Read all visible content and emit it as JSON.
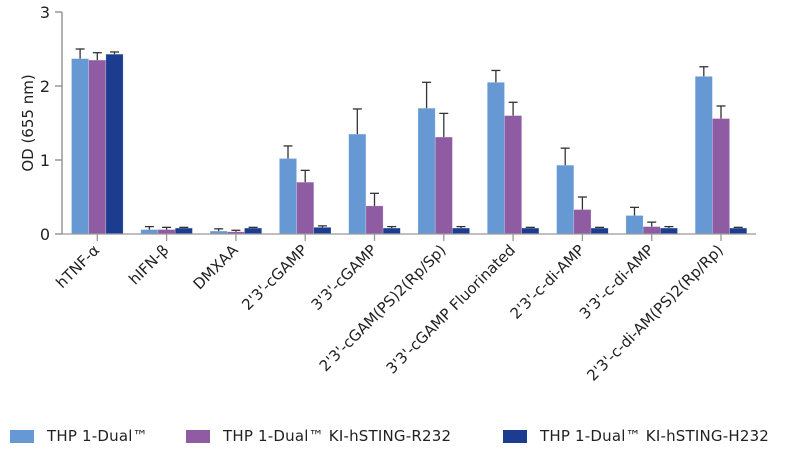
{
  "chart_data": {
    "type": "bar",
    "title": "",
    "xlabel": "",
    "ylabel": "OD (655 nm)",
    "ylim": [
      0,
      3
    ],
    "yticks": [
      0,
      1,
      2,
      3
    ],
    "grid": false,
    "legend_position": "bottom",
    "categories": [
      "hTNF-α",
      "hIFN-β",
      "DMXAA",
      "2'3'-cGAMP",
      "3'3'-cGAMP",
      "2'3'-cGAM(PS)2(Rp/Sp)",
      "3'3'-cGAMP Fluorinated",
      "2'3'-c-di-AMP",
      "3'3'-c-di-AMP",
      "2'3'-c-di-AM(PS)2(Rp/Rp)"
    ],
    "series": [
      {
        "name": "THP1-Dual™",
        "color": "#6699d4",
        "values": [
          2.37,
          0.06,
          0.04,
          1.02,
          1.35,
          1.7,
          2.05,
          0.93,
          0.25,
          2.13
        ],
        "error": [
          0.13,
          0.04,
          0.03,
          0.17,
          0.34,
          0.35,
          0.16,
          0.23,
          0.11,
          0.13
        ]
      },
      {
        "name": "THP1-Dual™ KI-hSTING-R232",
        "color": "#8f5ca3",
        "values": [
          2.35,
          0.06,
          0.03,
          0.7,
          0.38,
          1.31,
          1.6,
          0.33,
          0.1,
          1.56
        ],
        "error": [
          0.1,
          0.03,
          0.02,
          0.16,
          0.17,
          0.32,
          0.18,
          0.17,
          0.06,
          0.17
        ]
      },
      {
        "name": "THP1-Dual™ KI-hSTING-H232",
        "color": "#1b3c8f",
        "values": [
          2.43,
          0.08,
          0.08,
          0.09,
          0.08,
          0.08,
          0.08,
          0.08,
          0.08,
          0.08
        ],
        "error": [
          0.03,
          0.01,
          0.01,
          0.02,
          0.02,
          0.02,
          0.01,
          0.01,
          0.02,
          0.01
        ]
      }
    ]
  },
  "legend": {
    "items": [
      {
        "label": "THP 1-Dual™",
        "color": "#6699d4"
      },
      {
        "label": "THP 1-Dual™ KI-hSTING-R232",
        "color": "#8f5ca3"
      },
      {
        "label": "THP 1-Dual™ KI-hSTING-H232",
        "color": "#1b3c8f"
      }
    ]
  }
}
